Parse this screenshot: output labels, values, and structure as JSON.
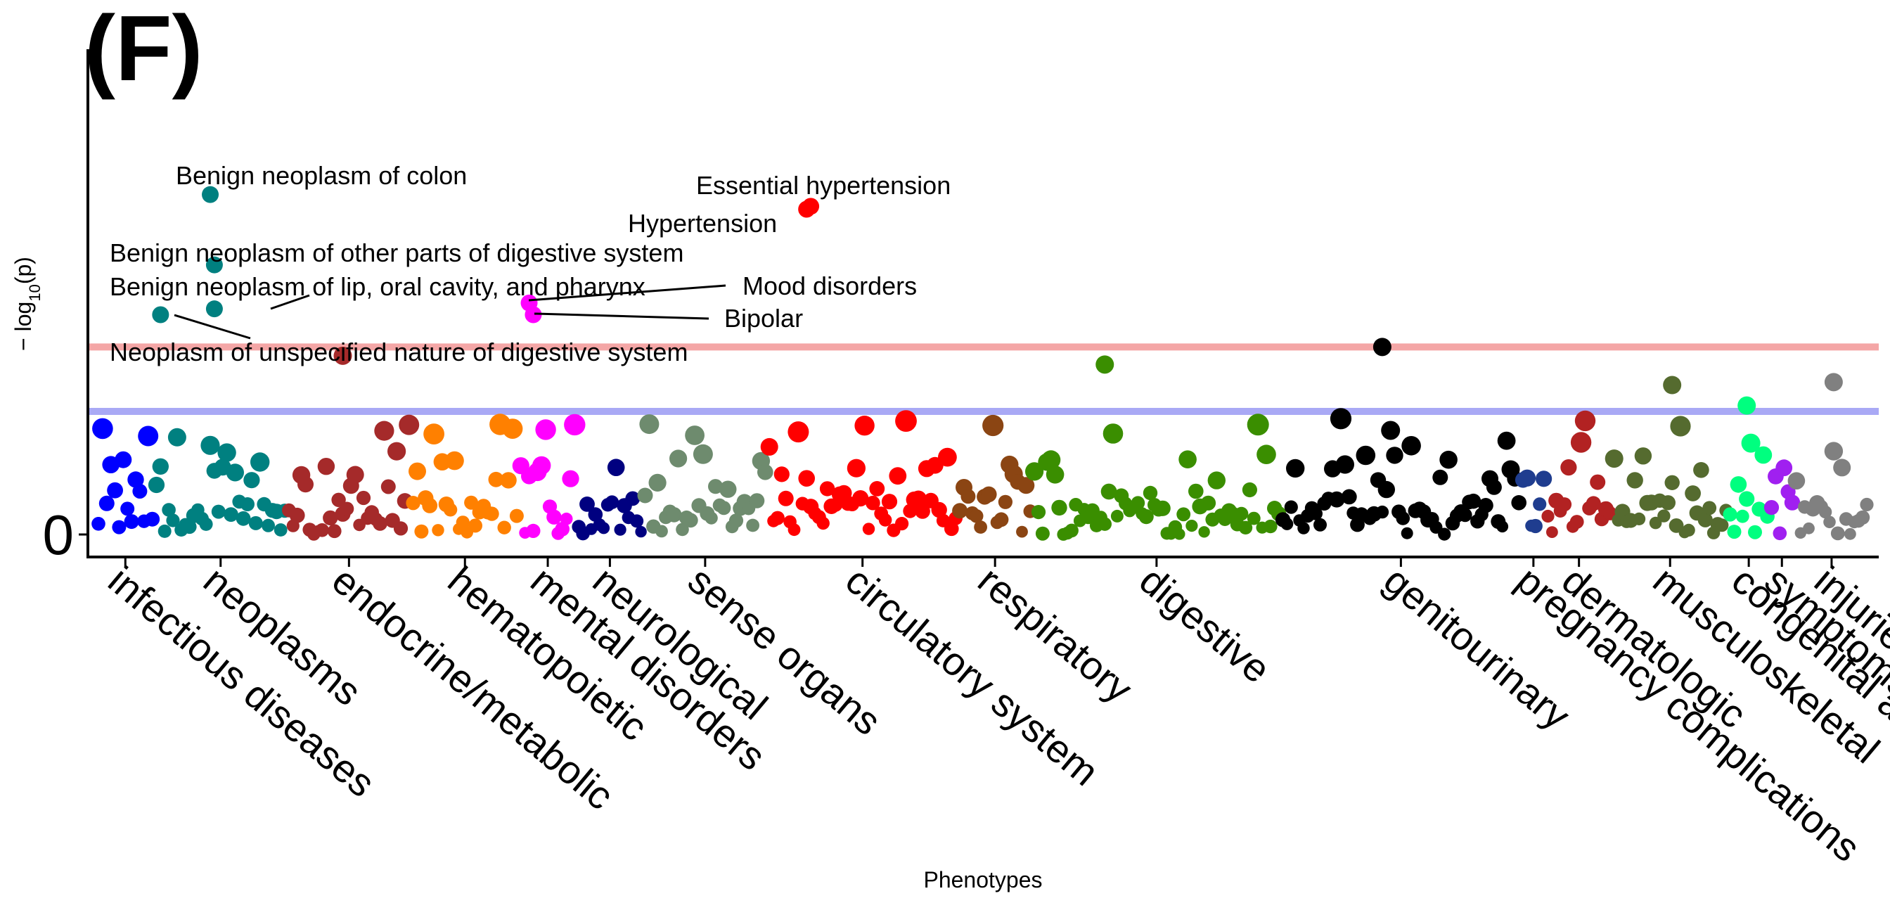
{
  "panel_label": "(F)",
  "chart_data": {
    "type": "scatter",
    "xlabel": "Phenotypes",
    "ylabel": "−log10(p)",
    "ylabel_parts": {
      "prefix": "− log",
      "sub": "10",
      "suffix": "(p)"
    },
    "yticks": [
      {
        "value": 0,
        "label": "0"
      }
    ],
    "ylim": [
      0,
      7.2
    ],
    "thresholds": [
      {
        "name": "bonferroni",
        "value": 3.2,
        "color": "#f4a6a6"
      },
      {
        "name": "suggestive",
        "value": 2.1,
        "color": "#a9a9f5"
      }
    ],
    "categories": [
      {
        "label": "infectious diseases",
        "color": "#0000ff",
        "n": 14,
        "x": [
          1,
          14
        ]
      },
      {
        "label": "neoplasms",
        "color": "#008080",
        "n": 32,
        "x": [
          15,
          46
        ]
      },
      {
        "label": "endocrine/metabolic",
        "color": "#a52a2a",
        "n": 30,
        "x": [
          47,
          76
        ]
      },
      {
        "label": "hematopoietic",
        "color": "#ff8000",
        "n": 26,
        "x": [
          77,
          102
        ]
      },
      {
        "label": "mental disorders",
        "color": "#ff00ff",
        "n": 14,
        "x": [
          103,
          116
        ]
      },
      {
        "label": "neurological",
        "color": "#000080",
        "n": 16,
        "x": [
          117,
          132
        ]
      },
      {
        "label": "sense organs",
        "color": "#6e8b6e",
        "n": 30,
        "x": [
          133,
          162
        ]
      },
      {
        "label": "circulatory system",
        "color": "#ff0000",
        "n": 46,
        "x": [
          163,
          208
        ]
      },
      {
        "label": "respiratory",
        "color": "#8b4513",
        "n": 18,
        "x": [
          209,
          226
        ]
      },
      {
        "label": "digestive",
        "color": "#3a8e00",
        "n": 60,
        "x": [
          227,
          286
        ]
      },
      {
        "label": "genitourinary",
        "color": "#000000",
        "n": 58,
        "x": [
          287,
          344
        ]
      },
      {
        "label": "pregnancy complications",
        "color": "#1f3d8f",
        "n": 6,
        "x": [
          345,
          350
        ]
      },
      {
        "label": "dermatologic",
        "color": "#b22222",
        "n": 16,
        "x": [
          351,
          366
        ]
      },
      {
        "label": "musculoskeletal",
        "color": "#556b2f",
        "n": 28,
        "x": [
          367,
          394
        ]
      },
      {
        "label": "congenital anomalies",
        "color": "#00ff7f",
        "n": 10,
        "x": [
          395,
          404
        ]
      },
      {
        "label": "symptoms",
        "color": "#a020f0",
        "n": 6,
        "x": [
          405,
          410
        ]
      },
      {
        "label": "injuries",
        "color": "#808080",
        "n": 18,
        "x": [
          411,
          428
        ]
      }
    ],
    "annotations": [
      {
        "label": "Benign neoplasm of colon",
        "category": "neoplasms",
        "x": 28,
        "y": 5.8
      },
      {
        "label": "Benign neoplasm of other parts of digestive system",
        "category": "neoplasms",
        "x": 29,
        "y": 4.6
      },
      {
        "label": "Benign neoplasm of lip, oral cavity, and pharynx",
        "category": "neoplasms",
        "x": 29,
        "y": 3.85
      },
      {
        "label": "Neoplasm of unspecified nature of digestive system",
        "category": "neoplasms",
        "x": 16,
        "y": 3.75
      },
      {
        "label": "Essential hypertension",
        "category": "circulatory system",
        "x": 173,
        "y": 5.6
      },
      {
        "label": "Hypertension",
        "category": "circulatory system",
        "x": 172,
        "y": 5.55
      },
      {
        "label": "Mood disorders",
        "category": "mental disorders",
        "x": 105,
        "y": 3.95
      },
      {
        "label": "Bipolar",
        "category": "mental disorders",
        "x": 106,
        "y": 3.75
      }
    ],
    "highlights": [
      {
        "category": "endocrine/metabolic",
        "x": 60,
        "y": 3.05
      },
      {
        "category": "genitourinary",
        "x": 311,
        "y": 3.2
      },
      {
        "category": "digestive",
        "x": 244,
        "y": 2.9
      },
      {
        "category": "injuries",
        "x": 420,
        "y": 2.6
      },
      {
        "category": "musculoskeletal",
        "x": 381,
        "y": 2.55
      },
      {
        "category": "congenital anomalies",
        "x": 399,
        "y": 2.2
      }
    ]
  }
}
